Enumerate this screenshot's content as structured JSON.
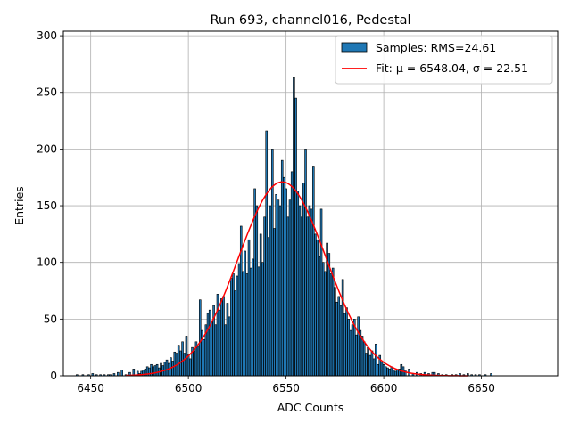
{
  "chart_data": {
    "type": "bar",
    "title": "Run 693, channel016, Pedestal",
    "xlabel": "ADC Counts",
    "ylabel": "Entries",
    "xlim": [
      6436,
      6689
    ],
    "ylim": [
      0,
      304
    ],
    "xticks": [
      6450,
      6500,
      6550,
      6600,
      6650
    ],
    "yticks": [
      0,
      50,
      100,
      150,
      200,
      250,
      300
    ],
    "grid": true,
    "legend_placement": "top-right",
    "series": [
      {
        "name": "Samples: RMS=24.61",
        "kind": "histogram",
        "color": "#1f77b4",
        "edge_color": "#000000",
        "bin_width": 1
      },
      {
        "name": "Fit: μ = 6548.04, σ = 22.51",
        "kind": "gaussian-fit",
        "color": "#ff0000",
        "mu": 6548.04,
        "sigma": 22.51,
        "amplitude": 171
      }
    ],
    "bins": [
      [
        6443,
        1
      ],
      [
        6446,
        1
      ],
      [
        6449,
        1
      ],
      [
        6451,
        2
      ],
      [
        6453,
        1
      ],
      [
        6455,
        1
      ],
      [
        6457,
        1
      ],
      [
        6459,
        1
      ],
      [
        6460,
        1
      ],
      [
        6462,
        2
      ],
      [
        6464,
        3
      ],
      [
        6466,
        5
      ],
      [
        6468,
        1
      ],
      [
        6470,
        3
      ],
      [
        6472,
        6
      ],
      [
        6474,
        4
      ],
      [
        6475,
        2
      ],
      [
        6476,
        4
      ],
      [
        6477,
        5
      ],
      [
        6478,
        6
      ],
      [
        6479,
        8
      ],
      [
        6480,
        7
      ],
      [
        6481,
        10
      ],
      [
        6482,
        8
      ],
      [
        6483,
        9
      ],
      [
        6484,
        10
      ],
      [
        6485,
        7
      ],
      [
        6486,
        11
      ],
      [
        6487,
        9
      ],
      [
        6488,
        12
      ],
      [
        6489,
        14
      ],
      [
        6490,
        11
      ],
      [
        6491,
        16
      ],
      [
        6492,
        13
      ],
      [
        6493,
        21
      ],
      [
        6494,
        20
      ],
      [
        6495,
        27
      ],
      [
        6496,
        22
      ],
      [
        6497,
        30
      ],
      [
        6498,
        20
      ],
      [
        6499,
        35
      ],
      [
        6500,
        19
      ],
      [
        6501,
        15
      ],
      [
        6502,
        25
      ],
      [
        6503,
        22
      ],
      [
        6504,
        30
      ],
      [
        6505,
        26
      ],
      [
        6506,
        67
      ],
      [
        6507,
        40
      ],
      [
        6508,
        32
      ],
      [
        6509,
        45
      ],
      [
        6510,
        55
      ],
      [
        6511,
        58
      ],
      [
        6512,
        48
      ],
      [
        6513,
        62
      ],
      [
        6514,
        45
      ],
      [
        6515,
        72
      ],
      [
        6516,
        58
      ],
      [
        6517,
        68
      ],
      [
        6518,
        70
      ],
      [
        6519,
        45
      ],
      [
        6520,
        64
      ],
      [
        6521,
        52
      ],
      [
        6522,
        86
      ],
      [
        6523,
        90
      ],
      [
        6524,
        75
      ],
      [
        6525,
        88
      ],
      [
        6526,
        99
      ],
      [
        6527,
        132
      ],
      [
        6528,
        92
      ],
      [
        6529,
        110
      ],
      [
        6530,
        90
      ],
      [
        6531,
        120
      ],
      [
        6532,
        95
      ],
      [
        6533,
        103
      ],
      [
        6534,
        165
      ],
      [
        6535,
        150
      ],
      [
        6536,
        96
      ],
      [
        6537,
        125
      ],
      [
        6538,
        100
      ],
      [
        6539,
        140
      ],
      [
        6540,
        216
      ],
      [
        6541,
        122
      ],
      [
        6542,
        150
      ],
      [
        6543,
        200
      ],
      [
        6544,
        130
      ],
      [
        6545,
        160
      ],
      [
        6546,
        155
      ],
      [
        6547,
        150
      ],
      [
        6548,
        190
      ],
      [
        6549,
        175
      ],
      [
        6550,
        165
      ],
      [
        6551,
        140
      ],
      [
        6552,
        155
      ],
      [
        6553,
        180
      ],
      [
        6554,
        263
      ],
      [
        6555,
        245
      ],
      [
        6556,
        163
      ],
      [
        6557,
        150
      ],
      [
        6558,
        140
      ],
      [
        6559,
        170
      ],
      [
        6560,
        200
      ],
      [
        6561,
        140
      ],
      [
        6562,
        150
      ],
      [
        6563,
        147
      ],
      [
        6564,
        185
      ],
      [
        6565,
        125
      ],
      [
        6566,
        120
      ],
      [
        6567,
        105
      ],
      [
        6568,
        147
      ],
      [
        6569,
        100
      ],
      [
        6570,
        92
      ],
      [
        6571,
        117
      ],
      [
        6572,
        108
      ],
      [
        6573,
        90
      ],
      [
        6574,
        95
      ],
      [
        6575,
        78
      ],
      [
        6576,
        65
      ],
      [
        6577,
        70
      ],
      [
        6578,
        62
      ],
      [
        6579,
        85
      ],
      [
        6580,
        55
      ],
      [
        6581,
        60
      ],
      [
        6582,
        50
      ],
      [
        6583,
        40
      ],
      [
        6584,
        45
      ],
      [
        6585,
        50
      ],
      [
        6586,
        36
      ],
      [
        6587,
        52
      ],
      [
        6588,
        40
      ],
      [
        6589,
        35
      ],
      [
        6590,
        30
      ],
      [
        6591,
        20
      ],
      [
        6592,
        25
      ],
      [
        6593,
        18
      ],
      [
        6594,
        22
      ],
      [
        6595,
        15
      ],
      [
        6596,
        28
      ],
      [
        6597,
        10
      ],
      [
        6598,
        18
      ],
      [
        6599,
        12
      ],
      [
        6600,
        10
      ],
      [
        6601,
        8
      ],
      [
        6602,
        7
      ],
      [
        6603,
        6
      ],
      [
        6604,
        8
      ],
      [
        6605,
        5
      ],
      [
        6606,
        4
      ],
      [
        6607,
        5
      ],
      [
        6608,
        6
      ],
      [
        6609,
        10
      ],
      [
        6610,
        8
      ],
      [
        6611,
        5
      ],
      [
        6613,
        6
      ],
      [
        6615,
        2
      ],
      [
        6617,
        3
      ],
      [
        6619,
        2
      ],
      [
        6621,
        3
      ],
      [
        6623,
        2
      ],
      [
        6625,
        3
      ],
      [
        6626,
        3
      ],
      [
        6628,
        2
      ],
      [
        6630,
        1
      ],
      [
        6632,
        1
      ],
      [
        6635,
        1
      ],
      [
        6637,
        1
      ],
      [
        6639,
        2
      ],
      [
        6641,
        1
      ],
      [
        6643,
        2
      ],
      [
        6645,
        1
      ],
      [
        6647,
        1
      ],
      [
        6649,
        1
      ],
      [
        6652,
        1
      ],
      [
        6655,
        2
      ]
    ]
  }
}
